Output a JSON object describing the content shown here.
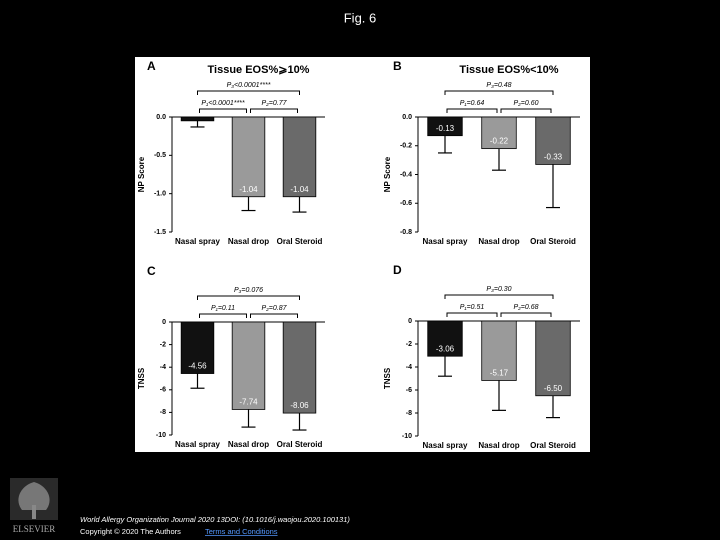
{
  "header": {
    "title": "Fig. 6"
  },
  "chart_data": [
    {
      "type": "bar",
      "panel": "A",
      "title": "Tissue EOS%⩾10%",
      "y_label": "NP Score",
      "categories": [
        "Nasal spray",
        "Nasal drop",
        "Oral Steroid"
      ],
      "values": [
        -0.05,
        -1.04,
        -1.04
      ],
      "errors": [
        0.08,
        0.18,
        0.2
      ],
      "value_labels": [
        null,
        "-1.04",
        "-1.04"
      ],
      "colors": [
        "#111111",
        "#9a9a9a",
        "#6a6a6a"
      ],
      "ylim": [
        -1.5,
        0
      ],
      "yticks": [
        {
          "value": 0,
          "label": "0.0"
        },
        -0.5,
        {
          "value": -1,
          "label": "-1.0"
        },
        -1.5
      ],
      "annotations": {
        "p_overall": "P₃<0.0001****",
        "p1": "P₁<0.0001****",
        "p2": "P₂=0.77"
      }
    },
    {
      "type": "bar",
      "panel": "B",
      "title": "Tissue EOS%<10%",
      "y_label": "NP Score",
      "categories": [
        "Nasal spray",
        "Nasal drop",
        "Oral Steroid"
      ],
      "values": [
        -0.13,
        -0.22,
        -0.33
      ],
      "errors": [
        0.12,
        0.15,
        0.3
      ],
      "value_labels": [
        "-0.13",
        "-0.22",
        "-0.33"
      ],
      "colors": [
        "#111111",
        "#9a9a9a",
        "#6a6a6a"
      ],
      "ylim": [
        -0.8,
        0
      ],
      "yticks": [
        {
          "value": 0,
          "label": "0.0"
        },
        -0.2,
        -0.4,
        -0.6,
        -0.8
      ],
      "annotations": {
        "p_overall": "P₃=0.48",
        "p1": "P₁=0.64",
        "p2": "P₂=0.60"
      }
    },
    {
      "type": "bar",
      "panel": "C",
      "y_label": "TNSS",
      "categories": [
        "Nasal spray",
        "Nasal drop",
        "Oral Steroid"
      ],
      "values": [
        -4.56,
        -7.74,
        -8.06
      ],
      "errors": [
        1.3,
        1.56,
        1.5
      ],
      "value_labels": [
        "-4.56",
        "-7.74",
        "-8.06"
      ],
      "colors": [
        "#111111",
        "#9a9a9a",
        "#6a6a6a"
      ],
      "ylim": [
        -10,
        0
      ],
      "yticks": [
        0,
        -2,
        -4,
        -6,
        -8,
        -10
      ],
      "annotations": {
        "p_overall": "P₃=0.076",
        "p1": "P₁=0.11",
        "p2": "P₂=0.87"
      }
    },
    {
      "type": "bar",
      "panel": "D",
      "y_label": "TNSS",
      "categories": [
        "Nasal spray",
        "Nasal drop",
        "Oral Steroid"
      ],
      "values": [
        -3.06,
        -5.17,
        -6.5
      ],
      "errors": [
        1.74,
        2.6,
        1.9
      ],
      "value_labels": [
        "-3.06",
        "-5.17",
        "-6.50"
      ],
      "colors": [
        "#111111",
        "#9a9a9a",
        "#6a6a6a"
      ],
      "ylim": [
        -10,
        0
      ],
      "yticks": [
        0,
        -2,
        -4,
        -6,
        -8,
        -10
      ],
      "annotations": {
        "p_overall": "P₃=0.30",
        "p1": "P₁=0.51",
        "p2": "P₂=0.68"
      }
    }
  ],
  "footer": {
    "publisher": "ELSEVIER",
    "citation": "World Allergy Organization Journal 2020 13DOI: (10.1016/j.waojou.2020.100131)",
    "copyright": "Copyright © 2020 The Authors",
    "link": "Terms and Conditions"
  }
}
